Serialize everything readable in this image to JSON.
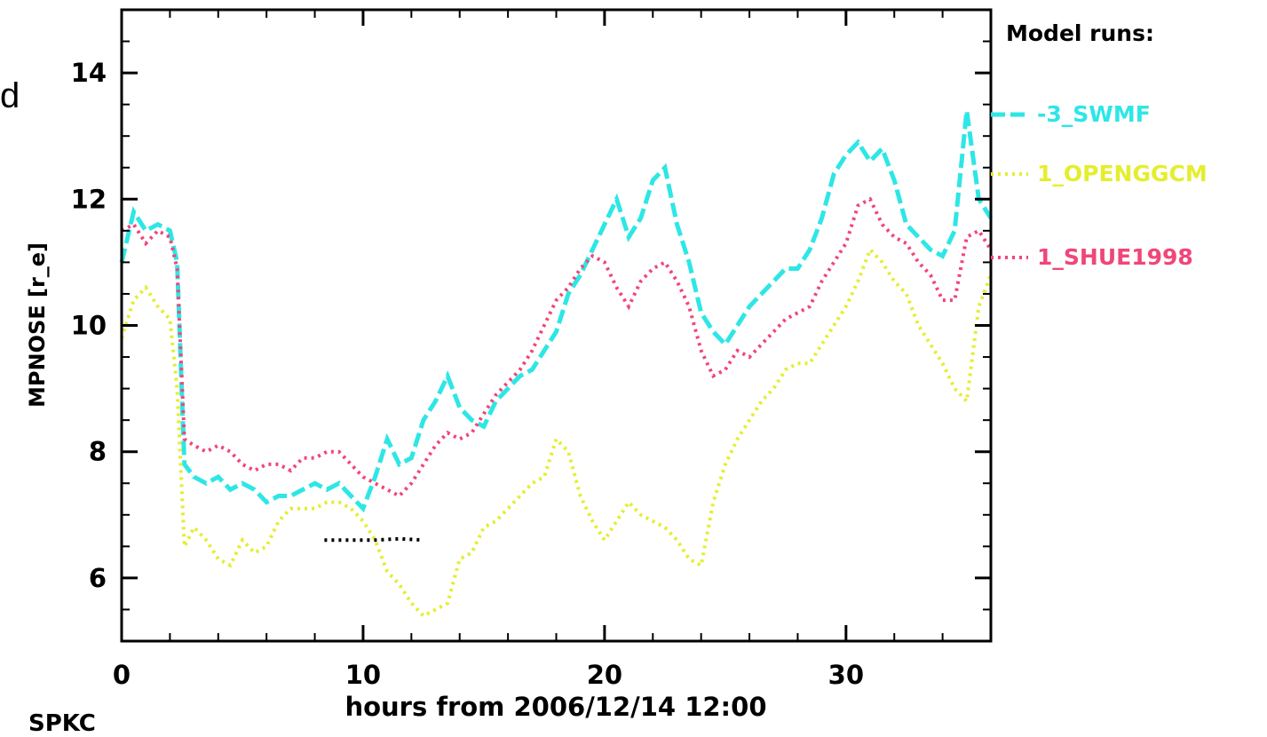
{
  "edge_text": {
    "left_letter": "d",
    "bottom_fragment": "SPKC"
  },
  "chart_data": {
    "type": "line",
    "title": "",
    "xlabel": "hours from 2006/12/14 12:00",
    "ylabel": "MPNOSE [r_e]",
    "xlim": [
      0,
      36
    ],
    "ylim": [
      5,
      15
    ],
    "xticks": [
      0,
      10,
      20,
      30
    ],
    "yticks": [
      6,
      8,
      10,
      12,
      14
    ],
    "grid": false,
    "legend": {
      "title": "Model runs:",
      "placement": "right-outside"
    },
    "series": [
      {
        "name": "-3_SWMF",
        "color": "#2ee6e6",
        "dash": "dashed",
        "x": [
          0,
          0.5,
          1,
          1.5,
          2,
          2.3,
          2.6,
          3,
          3.5,
          4,
          4.5,
          5,
          5.5,
          6,
          6.5,
          7,
          7.5,
          8,
          8.5,
          9,
          9.5,
          10,
          10.5,
          11,
          11.5,
          12,
          12.5,
          13,
          13.5,
          14,
          14.5,
          15,
          15.5,
          16,
          16.5,
          17,
          17.5,
          18,
          18.5,
          19,
          19.5,
          20,
          20.5,
          21,
          21.5,
          22,
          22.5,
          23,
          23.5,
          24,
          24.5,
          25,
          25.5,
          26,
          26.5,
          27,
          27.5,
          28,
          28.5,
          29,
          29.5,
          30,
          30.5,
          31,
          31.5,
          32,
          32.5,
          33,
          33.5,
          34,
          34.5,
          35,
          35.5,
          36
        ],
        "y": [
          11.0,
          11.8,
          11.5,
          11.6,
          11.5,
          11.0,
          7.8,
          7.6,
          7.5,
          7.6,
          7.4,
          7.5,
          7.4,
          7.2,
          7.3,
          7.3,
          7.4,
          7.5,
          7.4,
          7.5,
          7.3,
          7.1,
          7.6,
          8.2,
          7.8,
          7.9,
          8.5,
          8.8,
          9.2,
          8.7,
          8.5,
          8.4,
          8.8,
          9.0,
          9.2,
          9.3,
          9.6,
          9.9,
          10.5,
          10.8,
          11.2,
          11.6,
          12.0,
          11.4,
          11.7,
          12.3,
          12.5,
          11.6,
          11.0,
          10.2,
          9.9,
          9.7,
          10.0,
          10.3,
          10.5,
          10.7,
          10.9,
          10.9,
          11.2,
          11.7,
          12.4,
          12.7,
          12.9,
          12.6,
          12.8,
          12.3,
          11.6,
          11.4,
          11.2,
          11.1,
          11.5,
          13.4,
          12.0,
          11.7
        ]
      },
      {
        "name": "1_OPENGGCM",
        "color": "#e4ee2e",
        "dash": "dotted",
        "x": [
          0,
          0.5,
          1,
          1.5,
          2,
          2.3,
          2.6,
          3,
          3.5,
          4,
          4.5,
          5,
          5.5,
          6,
          6.5,
          7,
          7.5,
          8,
          8.5,
          9,
          9.5,
          10,
          10.5,
          11,
          11.5,
          12,
          12.5,
          13,
          13.5,
          14,
          14.5,
          15,
          15.5,
          16,
          16.5,
          17,
          17.5,
          18,
          18.5,
          19,
          19.5,
          20,
          20.5,
          21,
          21.5,
          22,
          22.5,
          23,
          23.5,
          24,
          24.5,
          25,
          25.5,
          26,
          26.5,
          27,
          27.5,
          28,
          28.5,
          29,
          29.5,
          30,
          30.5,
          31,
          31.5,
          32,
          32.5,
          33,
          33.5,
          34,
          34.5,
          35,
          35.5,
          36
        ],
        "y": [
          9.8,
          10.4,
          10.6,
          10.3,
          10.1,
          9.0,
          6.5,
          6.8,
          6.6,
          6.3,
          6.2,
          6.6,
          6.4,
          6.5,
          6.9,
          7.1,
          7.1,
          7.1,
          7.2,
          7.2,
          7.1,
          6.9,
          6.6,
          6.1,
          5.9,
          5.6,
          5.4,
          5.5,
          5.6,
          6.3,
          6.4,
          6.8,
          6.9,
          7.1,
          7.3,
          7.5,
          7.6,
          8.2,
          8.0,
          7.3,
          6.9,
          6.6,
          6.9,
          7.2,
          7.0,
          6.9,
          6.8,
          6.6,
          6.3,
          6.2,
          7.2,
          7.8,
          8.2,
          8.5,
          8.8,
          9.0,
          9.3,
          9.4,
          9.4,
          9.7,
          10.0,
          10.3,
          10.7,
          11.2,
          11.0,
          10.7,
          10.5,
          10.0,
          9.7,
          9.4,
          9.0,
          8.8,
          10.3,
          10.8
        ]
      },
      {
        "name": "1_SHUE1998",
        "color": "#f0467a",
        "dash": "dotted",
        "x": [
          0,
          0.5,
          1,
          1.5,
          2,
          2.3,
          2.6,
          3,
          3.5,
          4,
          4.5,
          5,
          5.5,
          6,
          6.5,
          7,
          7.5,
          8,
          8.5,
          9,
          9.5,
          10,
          10.5,
          11,
          11.5,
          12,
          12.5,
          13,
          13.5,
          14,
          14.5,
          15,
          15.5,
          16,
          16.5,
          17,
          17.5,
          18,
          18.5,
          19,
          19.5,
          20,
          20.5,
          21,
          21.5,
          22,
          22.5,
          23,
          23.5,
          24,
          24.5,
          25,
          25.5,
          26,
          26.5,
          27,
          27.5,
          28,
          28.5,
          29,
          29.5,
          30,
          30.5,
          31,
          31.5,
          32,
          32.5,
          33,
          33.5,
          34,
          34.5,
          35,
          35.5,
          36
        ],
        "y": [
          11.5,
          11.6,
          11.3,
          11.5,
          11.4,
          10.9,
          8.2,
          8.1,
          8.0,
          8.1,
          8.0,
          7.8,
          7.7,
          7.8,
          7.8,
          7.7,
          7.9,
          7.9,
          8.0,
          8.0,
          7.8,
          7.6,
          7.5,
          7.4,
          7.3,
          7.5,
          7.8,
          8.1,
          8.3,
          8.2,
          8.3,
          8.6,
          8.9,
          9.1,
          9.3,
          9.6,
          10.0,
          10.4,
          10.6,
          10.9,
          11.1,
          11.0,
          10.6,
          10.3,
          10.7,
          10.9,
          11.0,
          10.7,
          10.3,
          9.6,
          9.2,
          9.3,
          9.6,
          9.5,
          9.7,
          9.9,
          10.1,
          10.2,
          10.3,
          10.7,
          11.0,
          11.3,
          11.9,
          12.0,
          11.6,
          11.4,
          11.3,
          11.0,
          10.8,
          10.4,
          10.4,
          11.4,
          11.5,
          11.2
        ]
      },
      {
        "color": "#000000",
        "dash": "dotted",
        "x": [
          8.4,
          9.5,
          10.5,
          11.5,
          12.5
        ],
        "y": [
          6.6,
          6.6,
          6.6,
          6.62,
          6.6
        ]
      }
    ]
  }
}
